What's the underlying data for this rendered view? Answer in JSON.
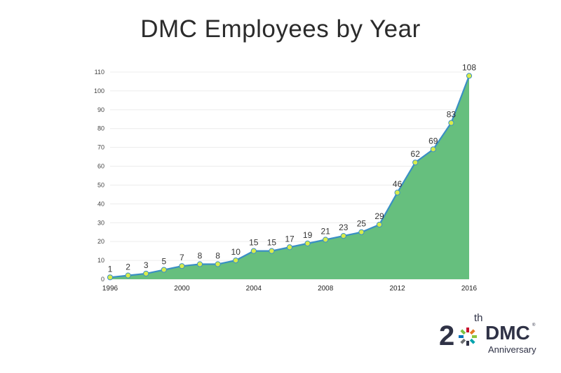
{
  "chart_data": {
    "type": "area",
    "title": "DMC Employees by Year",
    "xlabel": "",
    "ylabel": "",
    "x": [
      1996,
      1997,
      1998,
      1999,
      2000,
      2001,
      2002,
      2003,
      2004,
      2005,
      2006,
      2007,
      2008,
      2009,
      2010,
      2011,
      2012,
      2013,
      2014,
      2015,
      2016
    ],
    "values": [
      1,
      2,
      3,
      5,
      7,
      8,
      8,
      10,
      15,
      15,
      17,
      19,
      21,
      23,
      25,
      29,
      46,
      62,
      69,
      83,
      108
    ],
    "xticks": [
      "1996",
      "2000",
      "2004",
      "2008",
      "2012",
      "2016"
    ],
    "yticks": [
      "0",
      "10",
      "20",
      "30",
      "40",
      "50",
      "60",
      "70",
      "80",
      "90",
      "100",
      "110"
    ],
    "ylim": [
      0,
      110
    ],
    "xlim": [
      1996,
      2016
    ],
    "grid": true,
    "legend": "none",
    "colors": {
      "fill": "#66bf7e",
      "line": "#3a8fc4",
      "marker_fill": "#d8ec4a",
      "marker_stroke": "#3a8fc4"
    }
  },
  "logo": {
    "number": "2",
    "superscript": "th",
    "brand": "DMC",
    "registered": "®",
    "subtitle": "Anniversary"
  }
}
